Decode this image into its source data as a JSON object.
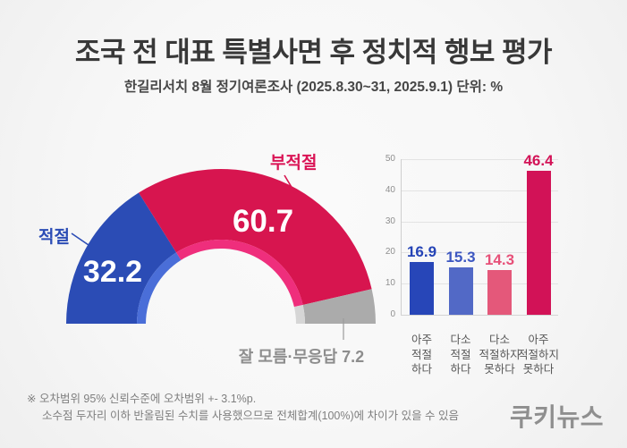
{
  "header": {
    "title": "조국 전 대표 특별사면 후 정치적 행보 평가",
    "subtitle": "한길리서치 8월 정기여론조사 (2025.8.30~31, 2025.9.1) 단위: %"
  },
  "chart_data": [
    {
      "type": "pie",
      "subtype": "semi-donut",
      "unit": "%",
      "segments": [
        {
          "label": "적절",
          "value": 32.2,
          "color": "#2b4cb5",
          "rim_color": "#4a6ed8",
          "label_color": "#2b4cb5"
        },
        {
          "label": "부적절",
          "value": 60.7,
          "color": "#d7154f",
          "rim_color": "#ef2e7c",
          "label_color": "#da1455"
        },
        {
          "label": "잘 모름·무응답",
          "value": 7.2,
          "color": "#ababab",
          "rim_color": "#d6d6d6",
          "label_color": "#8d8d8d"
        }
      ]
    },
    {
      "type": "bar",
      "categories": [
        "아주\n적절\n하다",
        "다소\n적절\n하다",
        "다소\n적절하지\n못하다",
        "아주\n적절하지\n못하다"
      ],
      "values": [
        16.9,
        15.3,
        14.3,
        46.4
      ],
      "bar_colors": [
        "#2746b8",
        "#5269c6",
        "#e4587a",
        "#d21257"
      ],
      "value_label_colors": [
        "#2544b6",
        "#3d57c1",
        "#e75179",
        "#d31357"
      ],
      "ylim": [
        0,
        50
      ],
      "yticks": [
        0,
        10,
        20,
        30,
        40,
        50
      ],
      "grid": true,
      "legend": false,
      "xlabel": "",
      "ylabel": ""
    }
  ],
  "footnote": {
    "line1": "※ 오차범위 95% 신뢰수준에 오차범위 +- 3.1%p.",
    "line2": "소수점 두자리 이하 반올림된 수치를 사용했으므로 전체합계(100%)에 차이가 있을 수 있음"
  },
  "logo": "쿠키뉴스"
}
